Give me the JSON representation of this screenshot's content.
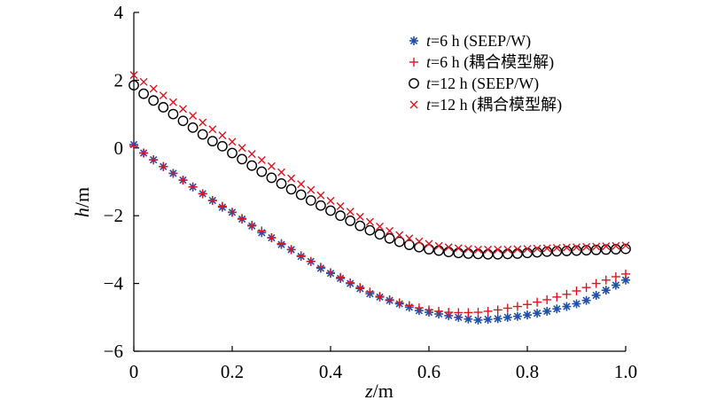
{
  "chart_data": {
    "type": "scatter",
    "xlabel": {
      "var": "z",
      "unit": "/m"
    },
    "ylabel": {
      "var": "h",
      "unit": "/m"
    },
    "xlim": [
      0,
      1.0
    ],
    "ylim": [
      -6,
      4
    ],
    "xticks": [
      {
        "value": 0,
        "label": "0"
      },
      {
        "value": 0.2,
        "label": "0.2"
      },
      {
        "value": 0.4,
        "label": "0.4"
      },
      {
        "value": 0.6,
        "label": "0.6"
      },
      {
        "value": 0.8,
        "label": "0.8"
      },
      {
        "value": 1.0,
        "label": "1.0"
      }
    ],
    "yticks": [
      {
        "value": 4,
        "label": "4"
      },
      {
        "value": 2,
        "label": "2"
      },
      {
        "value": 0,
        "label": "0"
      },
      {
        "value": -2,
        "label": "−2"
      },
      {
        "value": -4,
        "label": "−4"
      },
      {
        "value": -6,
        "label": "−6"
      }
    ],
    "grid": false,
    "legend_position": "top-right",
    "series": [
      {
        "var": "t",
        "name": "=6 h (SEEP/W)",
        "marker": "asterisk",
        "color": "#1f4fa8",
        "x": [
          0.0,
          0.02,
          0.04,
          0.06,
          0.08,
          0.1,
          0.12,
          0.14,
          0.16,
          0.18,
          0.2,
          0.22,
          0.24,
          0.26,
          0.28,
          0.3,
          0.32,
          0.34,
          0.36,
          0.38,
          0.4,
          0.42,
          0.44,
          0.46,
          0.48,
          0.5,
          0.52,
          0.54,
          0.56,
          0.58,
          0.6,
          0.62,
          0.64,
          0.66,
          0.68,
          0.7,
          0.72,
          0.74,
          0.76,
          0.78,
          0.8,
          0.82,
          0.84,
          0.86,
          0.88,
          0.9,
          0.92,
          0.94,
          0.96,
          0.98,
          1.0
        ],
        "y": [
          0.1,
          -0.15,
          -0.35,
          -0.55,
          -0.75,
          -0.95,
          -1.15,
          -1.35,
          -1.55,
          -1.75,
          -1.9,
          -2.1,
          -2.3,
          -2.5,
          -2.65,
          -2.85,
          -3.0,
          -3.2,
          -3.35,
          -3.55,
          -3.7,
          -3.85,
          -4.0,
          -4.15,
          -4.3,
          -4.4,
          -4.5,
          -4.6,
          -4.7,
          -4.8,
          -4.85,
          -4.9,
          -4.95,
          -5.0,
          -5.05,
          -5.08,
          -5.06,
          -5.04,
          -5.0,
          -4.97,
          -4.93,
          -4.88,
          -4.82,
          -4.75,
          -4.68,
          -4.6,
          -4.5,
          -4.35,
          -4.2,
          -4.05,
          -3.9
        ]
      },
      {
        "var": "t",
        "name": "=6 h (耦合模型解)",
        "marker": "plus",
        "color": "#e0141e",
        "x": [
          0.0,
          0.02,
          0.04,
          0.06,
          0.08,
          0.1,
          0.12,
          0.14,
          0.16,
          0.18,
          0.2,
          0.22,
          0.24,
          0.26,
          0.28,
          0.3,
          0.32,
          0.34,
          0.36,
          0.38,
          0.4,
          0.42,
          0.44,
          0.46,
          0.48,
          0.5,
          0.52,
          0.54,
          0.56,
          0.58,
          0.6,
          0.62,
          0.64,
          0.66,
          0.68,
          0.7,
          0.72,
          0.74,
          0.76,
          0.78,
          0.8,
          0.82,
          0.84,
          0.86,
          0.88,
          0.9,
          0.92,
          0.94,
          0.96,
          0.98,
          1.0
        ],
        "y": [
          0.05,
          -0.15,
          -0.35,
          -0.55,
          -0.75,
          -0.95,
          -1.15,
          -1.35,
          -1.55,
          -1.72,
          -1.9,
          -2.08,
          -2.28,
          -2.45,
          -2.65,
          -2.82,
          -3.0,
          -3.18,
          -3.35,
          -3.52,
          -3.68,
          -3.82,
          -3.98,
          -4.12,
          -4.25,
          -4.38,
          -4.48,
          -4.57,
          -4.65,
          -4.72,
          -4.78,
          -4.82,
          -4.85,
          -4.86,
          -4.86,
          -4.85,
          -4.82,
          -4.78,
          -4.73,
          -4.68,
          -4.62,
          -4.55,
          -4.48,
          -4.4,
          -4.32,
          -4.22,
          -4.12,
          -4.0,
          -3.9,
          -3.8,
          -3.72
        ]
      },
      {
        "var": "t",
        "name": "=12 h (SEEP/W)",
        "marker": "circle",
        "color": "#000000",
        "x": [
          0.0,
          0.02,
          0.04,
          0.06,
          0.08,
          0.1,
          0.12,
          0.14,
          0.16,
          0.18,
          0.2,
          0.22,
          0.24,
          0.26,
          0.28,
          0.3,
          0.32,
          0.34,
          0.36,
          0.38,
          0.4,
          0.42,
          0.44,
          0.46,
          0.48,
          0.5,
          0.52,
          0.54,
          0.56,
          0.58,
          0.6,
          0.62,
          0.64,
          0.66,
          0.68,
          0.7,
          0.72,
          0.74,
          0.76,
          0.78,
          0.8,
          0.82,
          0.84,
          0.86,
          0.88,
          0.9,
          0.92,
          0.94,
          0.96,
          0.98,
          1.0
        ],
        "y": [
          1.85,
          1.6,
          1.4,
          1.2,
          1.0,
          0.8,
          0.6,
          0.4,
          0.2,
          0.05,
          -0.15,
          -0.33,
          -0.52,
          -0.7,
          -0.88,
          -1.05,
          -1.22,
          -1.38,
          -1.55,
          -1.7,
          -1.85,
          -2.0,
          -2.15,
          -2.3,
          -2.43,
          -2.55,
          -2.67,
          -2.77,
          -2.86,
          -2.93,
          -2.99,
          -3.03,
          -3.07,
          -3.1,
          -3.12,
          -3.13,
          -3.14,
          -3.14,
          -3.13,
          -3.12,
          -3.1,
          -3.08,
          -3.06,
          -3.05,
          -3.04,
          -3.03,
          -3.02,
          -3.01,
          -3.0,
          -2.99,
          -2.98
        ]
      },
      {
        "var": "t",
        "name": "=12 h (耦合模型解)",
        "marker": "cross",
        "color": "#e0141e",
        "x": [
          0.0,
          0.02,
          0.04,
          0.06,
          0.08,
          0.1,
          0.12,
          0.14,
          0.16,
          0.18,
          0.2,
          0.22,
          0.24,
          0.26,
          0.28,
          0.3,
          0.32,
          0.34,
          0.36,
          0.38,
          0.4,
          0.42,
          0.44,
          0.46,
          0.48,
          0.5,
          0.52,
          0.54,
          0.56,
          0.58,
          0.6,
          0.62,
          0.64,
          0.66,
          0.68,
          0.7,
          0.72,
          0.74,
          0.76,
          0.78,
          0.8,
          0.82,
          0.84,
          0.86,
          0.88,
          0.9,
          0.92,
          0.94,
          0.96,
          0.98,
          1.0
        ],
        "y": [
          2.15,
          1.95,
          1.75,
          1.55,
          1.35,
          1.15,
          0.95,
          0.75,
          0.55,
          0.37,
          0.18,
          0.0,
          -0.18,
          -0.36,
          -0.54,
          -0.72,
          -0.9,
          -1.07,
          -1.24,
          -1.4,
          -1.56,
          -1.72,
          -1.88,
          -2.03,
          -2.18,
          -2.32,
          -2.45,
          -2.57,
          -2.67,
          -2.76,
          -2.83,
          -2.89,
          -2.93,
          -2.96,
          -2.98,
          -3.0,
          -3.0,
          -3.0,
          -3.0,
          -2.99,
          -2.98,
          -2.97,
          -2.96,
          -2.95,
          -2.94,
          -2.93,
          -2.92,
          -2.91,
          -2.9,
          -2.89,
          -2.88
        ]
      }
    ]
  }
}
